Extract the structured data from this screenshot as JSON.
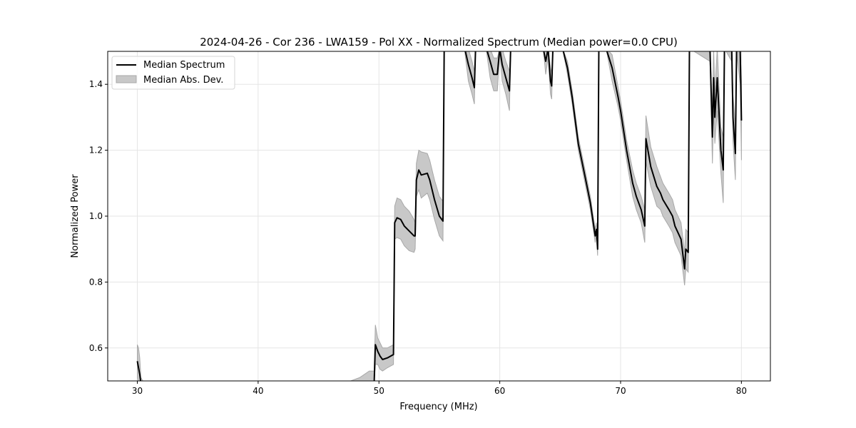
{
  "chart_data": {
    "type": "line",
    "title": "2024-04-26 - Cor 236 - LWA159 - Pol XX - Normalized Spectrum (Median power=0.0 CPU)",
    "xlabel": "Frequency (MHz)",
    "ylabel": "Normalized Power",
    "xlim": [
      27.55,
      82.4
    ],
    "ylim": [
      0.5,
      1.5
    ],
    "xticks": [
      30,
      40,
      50,
      60,
      70,
      80
    ],
    "xtick_labels": [
      "30",
      "40",
      "50",
      "60",
      "70",
      "80"
    ],
    "yticks": [
      0.6,
      0.8,
      1.0,
      1.2,
      1.4
    ],
    "ytick_labels": [
      "0.6",
      "0.8",
      "1.0",
      "1.2",
      "1.4"
    ],
    "grid": true,
    "legend": {
      "placement": "top-left",
      "entries": [
        "Median Spectrum",
        "Median Abs. Dev."
      ]
    },
    "colors": {
      "line": "#000000",
      "band": "#c8c8c8",
      "band_edge": "#a8a8a8",
      "grid": "#e5e5e5"
    },
    "series": [
      {
        "name": "Median Spectrum",
        "band": "Median Abs. Dev.",
        "points_freq_median_mad": [
          [
            30.0,
            0.56,
            0.05
          ],
          [
            30.1,
            0.54,
            0.06
          ],
          [
            30.2,
            0.52,
            0.05
          ],
          [
            30.3,
            0.47,
            0.04
          ],
          [
            30.6,
            0.4,
            0.04
          ],
          [
            31,
            0.3,
            0.03
          ],
          [
            47,
            0.3,
            0.04
          ],
          [
            48.4,
            0.45,
            0.06
          ],
          [
            48.8,
            0.47,
            0.05
          ],
          [
            49.2,
            0.48,
            0.05
          ],
          [
            49.6,
            0.49,
            0.04
          ],
          [
            49.7,
            0.61,
            0.06
          ],
          [
            49.9,
            0.59,
            0.04
          ],
          [
            50.1,
            0.575,
            0.04
          ],
          [
            50.3,
            0.565,
            0.035
          ],
          [
            50.7,
            0.57,
            0.03
          ],
          [
            51.2,
            0.58,
            0.03
          ],
          [
            51.3,
            0.98,
            0.05
          ],
          [
            51.5,
            0.995,
            0.06
          ],
          [
            51.8,
            0.99,
            0.06
          ],
          [
            52.1,
            0.97,
            0.06
          ],
          [
            52.5,
            0.955,
            0.06
          ],
          [
            52.9,
            0.94,
            0.05
          ],
          [
            53.0,
            0.94,
            0.04
          ],
          [
            53.1,
            1.11,
            0.05
          ],
          [
            53.3,
            1.14,
            0.06
          ],
          [
            53.5,
            1.125,
            0.07
          ],
          [
            54.0,
            1.13,
            0.06
          ],
          [
            54.2,
            1.11,
            0.06
          ],
          [
            54.6,
            1.05,
            0.06
          ],
          [
            55.0,
            1.0,
            0.06
          ],
          [
            55.3,
            0.985,
            0.06
          ],
          [
            55.4,
            1.7,
            0.05
          ],
          [
            57.1,
            1.55,
            0.05
          ],
          [
            57.4,
            1.46,
            0.05
          ],
          [
            57.7,
            1.42,
            0.05
          ],
          [
            57.9,
            1.39,
            0.05
          ],
          [
            58.0,
            1.6,
            0.05
          ],
          [
            58.9,
            1.55,
            0.05
          ],
          [
            59.2,
            1.47,
            0.05
          ],
          [
            59.5,
            1.43,
            0.05
          ],
          [
            59.8,
            1.43,
            0.05
          ],
          [
            60.0,
            1.55,
            0.05
          ],
          [
            60.2,
            1.46,
            0.05
          ],
          [
            60.5,
            1.42,
            0.05
          ],
          [
            60.8,
            1.38,
            0.06
          ],
          [
            60.9,
            1.7,
            0.05
          ],
          [
            63.6,
            1.55,
            0.04
          ],
          [
            63.8,
            1.47,
            0.04
          ],
          [
            64.0,
            1.52,
            0.04
          ],
          [
            64.2,
            1.41,
            0.04
          ],
          [
            64.3,
            1.395,
            0.04
          ],
          [
            64.4,
            1.7,
            0.04
          ],
          [
            65.2,
            1.55,
            0.02
          ],
          [
            65.6,
            1.45,
            0.02
          ],
          [
            66.0,
            1.36,
            0.02
          ],
          [
            66.5,
            1.22,
            0.02
          ],
          [
            67.0,
            1.13,
            0.02
          ],
          [
            67.5,
            1.04,
            0.02
          ],
          [
            67.9,
            0.94,
            0.02
          ],
          [
            68.0,
            0.96,
            0.02
          ],
          [
            68.1,
            0.9,
            0.02
          ],
          [
            68.2,
            1.7,
            0.03
          ],
          [
            68.8,
            1.55,
            0.03
          ],
          [
            69.3,
            1.45,
            0.04
          ],
          [
            69.8,
            1.36,
            0.03
          ],
          [
            70.0,
            1.32,
            0.03
          ],
          [
            70.5,
            1.2,
            0.03
          ],
          [
            71.0,
            1.1,
            0.04
          ],
          [
            71.3,
            1.06,
            0.04
          ],
          [
            71.7,
            1.02,
            0.04
          ],
          [
            72.0,
            0.97,
            0.05
          ],
          [
            72.1,
            1.235,
            0.07
          ],
          [
            72.5,
            1.15,
            0.06
          ],
          [
            73.0,
            1.09,
            0.06
          ],
          [
            73.3,
            1.07,
            0.05
          ],
          [
            73.5,
            1.05,
            0.05
          ],
          [
            74.0,
            1.02,
            0.05
          ],
          [
            74.3,
            1.0,
            0.05
          ],
          [
            74.5,
            0.97,
            0.05
          ],
          [
            75.0,
            0.93,
            0.05
          ],
          [
            75.3,
            0.84,
            0.05
          ],
          [
            75.4,
            0.9,
            0.06
          ],
          [
            75.6,
            0.89,
            0.06
          ],
          [
            75.7,
            1.7,
            0.05
          ],
          [
            77.4,
            1.55,
            0.08
          ],
          [
            77.6,
            1.24,
            0.08
          ],
          [
            77.7,
            1.42,
            0.1
          ],
          [
            77.8,
            1.3,
            0.08
          ],
          [
            78.0,
            1.42,
            0.1
          ],
          [
            78.3,
            1.2,
            0.07
          ],
          [
            78.5,
            1.14,
            0.1
          ],
          [
            78.6,
            1.6,
            0.08
          ],
          [
            79.2,
            1.55,
            0.08
          ],
          [
            79.3,
            1.3,
            0.07
          ],
          [
            79.5,
            1.19,
            0.08
          ],
          [
            79.6,
            1.6,
            0.1
          ],
          [
            79.9,
            1.5,
            0.1
          ],
          [
            80.0,
            1.29,
            0.12
          ]
        ]
      }
    ]
  }
}
